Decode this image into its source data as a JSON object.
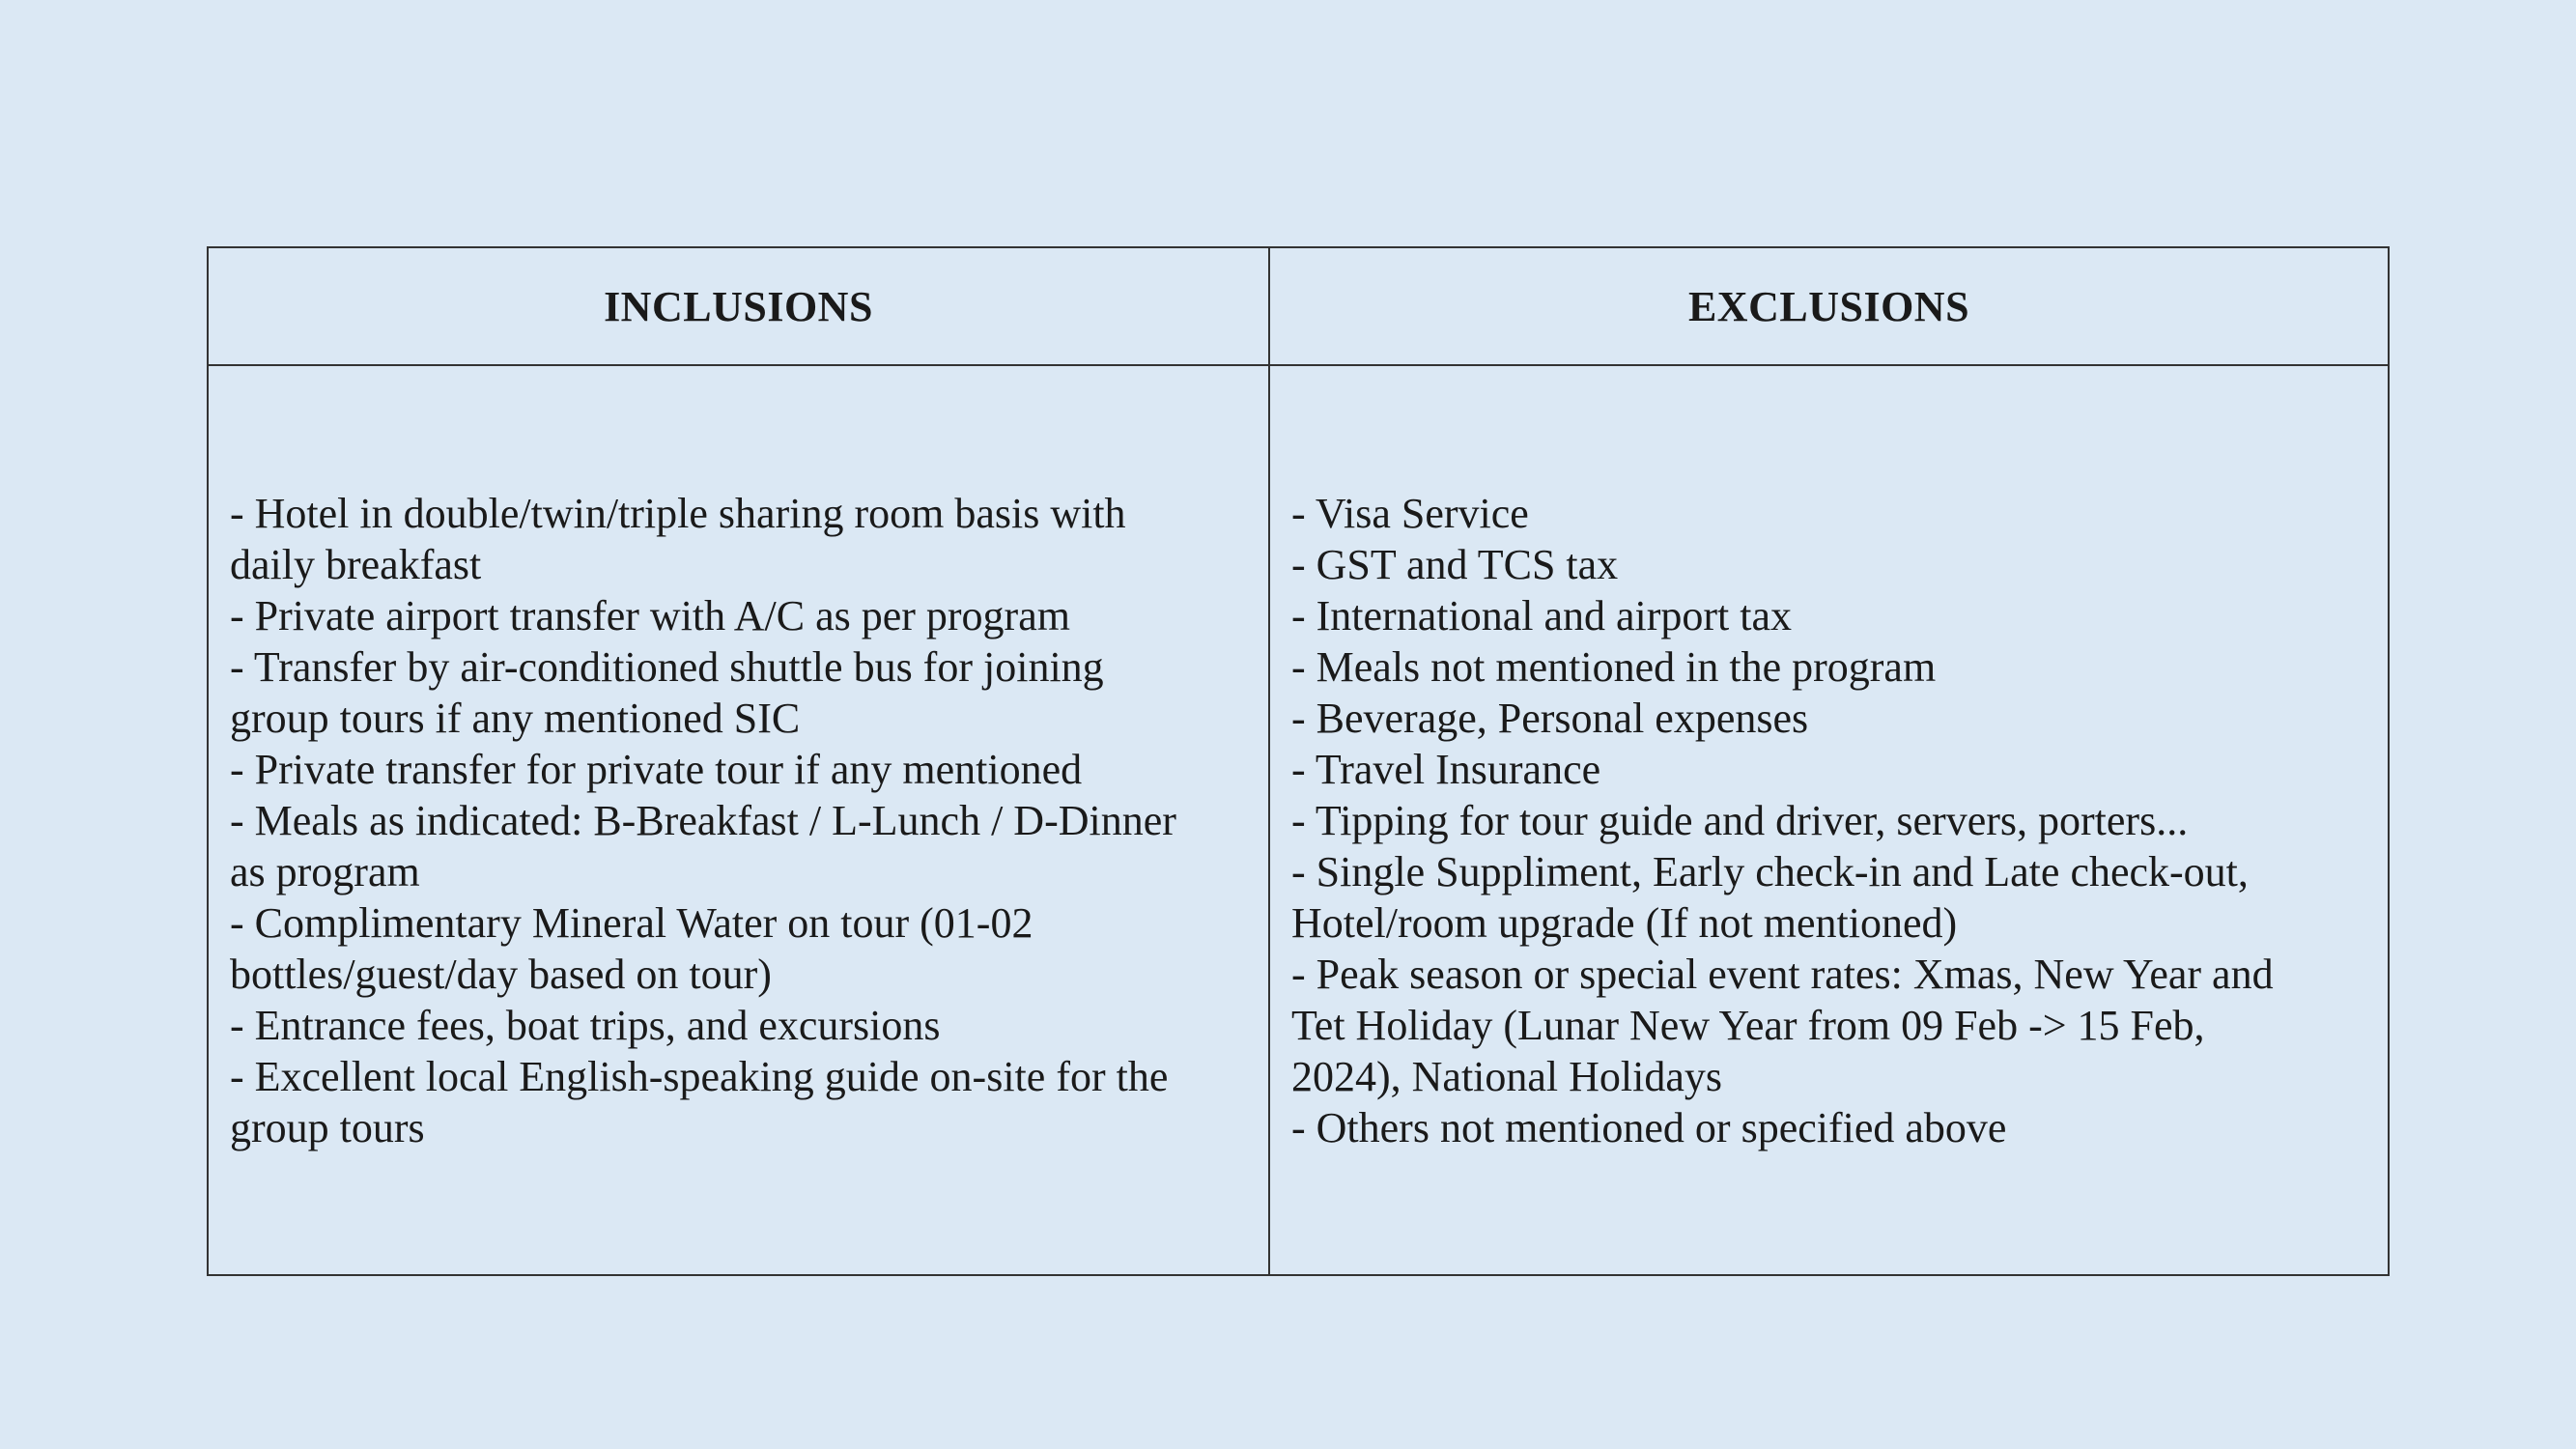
{
  "theme": {
    "page-bg": "#dbe8f4",
    "cell-bg": "#dbe8f4",
    "border-color": "#333333",
    "text-color": "#1a1a1a"
  },
  "table": {
    "columns": [
      {
        "header": "INCLUSIONS",
        "items": [
          "- Hotel in double/twin/triple sharing room basis with daily breakfast",
          "- Private airport transfer with A/C as per program",
          "- Transfer by air-conditioned shuttle bus for joining group tours if any mentioned SIC",
          "- Private transfer for private tour if any mentioned",
          "- Meals as indicated: B-Breakfast / L-Lunch / D-Dinner as program",
          "- Complimentary Mineral Water on tour (01-02 bottles/guest/day based on tour)",
          "- Entrance fees, boat trips, and excursions",
          "- Excellent local English-speaking guide on-site for the group tours"
        ]
      },
      {
        "header": "EXCLUSIONS",
        "items": [
          "- Visa Service",
          "- GST and TCS tax",
          "- International and airport tax",
          "- Meals not mentioned in the program",
          "- Beverage, Personal expenses",
          "- Travel Insurance",
          "- Tipping for tour guide and driver, servers, porters...",
          "- Single Suppliment, Early check-in and Late check-out, Hotel/room upgrade (If not mentioned)",
          "- Peak season or special event rates: Xmas, New Year and Tet Holiday (Lunar New Year from 09 Feb -> 15 Feb, 2024), National Holidays",
          "- Others not mentioned or specified above"
        ]
      }
    ]
  }
}
